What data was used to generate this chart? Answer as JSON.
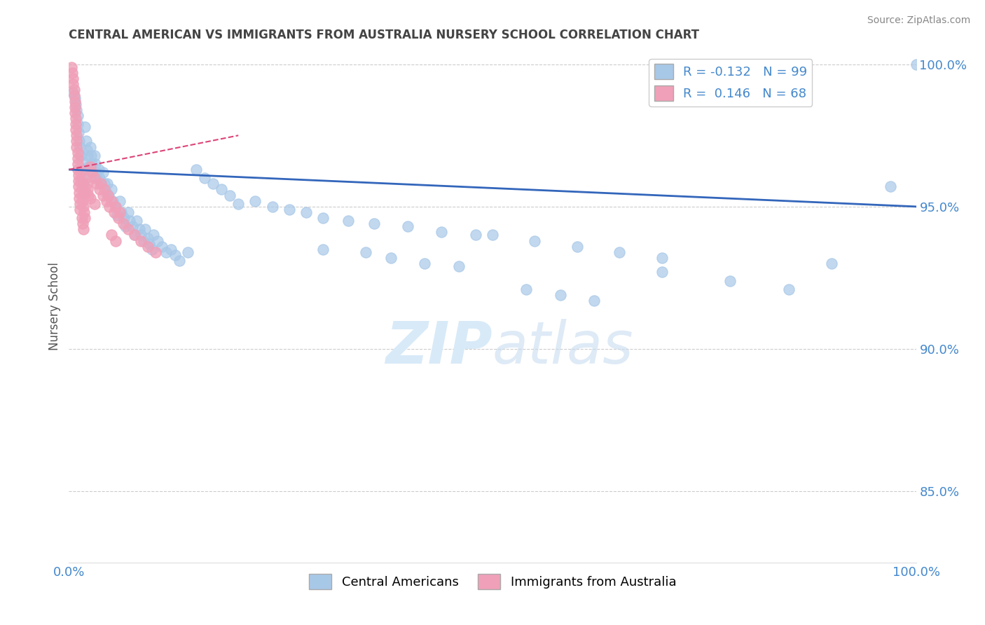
{
  "title": "CENTRAL AMERICAN VS IMMIGRANTS FROM AUSTRALIA NURSERY SCHOOL CORRELATION CHART",
  "source": "Source: ZipAtlas.com",
  "ylabel": "Nursery School",
  "xlim": [
    0,
    1.0
  ],
  "ylim": [
    0.825,
    1.005
  ],
  "ytick_vals": [
    0.85,
    0.9,
    0.95,
    1.0
  ],
  "ytick_labels": [
    "85.0%",
    "90.0%",
    "95.0%",
    "100.0%"
  ],
  "blue_color": "#a8c8e8",
  "pink_color": "#f0a0b8",
  "trend_blue_color": "#3366bb",
  "trend_pink_color": "#dd4477",
  "axis_color": "#4488cc",
  "title_color": "#444444",
  "source_color": "#888888",
  "grid_color": "#cccccc",
  "watermark_color": "#d8eaf8",
  "legend_label1": "R = -0.132   N = 99",
  "legend_label2": "R =  0.146   N = 68",
  "bottom_legend1": "Central Americans",
  "bottom_legend2": "Immigrants from Australia",
  "blue_scatter_x": [
    0.005,
    0.007,
    0.008,
    0.009,
    0.01,
    0.01,
    0.011,
    0.012,
    0.013,
    0.014,
    0.015,
    0.015,
    0.016,
    0.017,
    0.018,
    0.019,
    0.02,
    0.021,
    0.022,
    0.023,
    0.025,
    0.026,
    0.027,
    0.028,
    0.03,
    0.031,
    0.032,
    0.033,
    0.035,
    0.036,
    0.038,
    0.04,
    0.042,
    0.044,
    0.045,
    0.047,
    0.05,
    0.052,
    0.055,
    0.057,
    0.06,
    0.062,
    0.065,
    0.067,
    0.07,
    0.072,
    0.075,
    0.077,
    0.08,
    0.083,
    0.085,
    0.088,
    0.09,
    0.093,
    0.095,
    0.098,
    0.1,
    0.105,
    0.11,
    0.115,
    0.12,
    0.125,
    0.13,
    0.14,
    0.15,
    0.16,
    0.17,
    0.18,
    0.19,
    0.2,
    0.22,
    0.24,
    0.26,
    0.28,
    0.3,
    0.33,
    0.36,
    0.4,
    0.44,
    0.48,
    0.3,
    0.35,
    0.38,
    0.42,
    0.46,
    0.5,
    0.55,
    0.6,
    0.65,
    0.7,
    0.54,
    0.58,
    0.62,
    0.7,
    0.78,
    0.85,
    0.9,
    0.97,
    1.0
  ],
  "blue_scatter_y": [
    0.99,
    0.988,
    0.986,
    0.984,
    0.982,
    0.979,
    0.976,
    0.973,
    0.971,
    0.968,
    0.966,
    0.963,
    0.96,
    0.958,
    0.955,
    0.978,
    0.973,
    0.97,
    0.968,
    0.964,
    0.971,
    0.968,
    0.965,
    0.962,
    0.968,
    0.965,
    0.962,
    0.96,
    0.963,
    0.96,
    0.958,
    0.962,
    0.958,
    0.955,
    0.958,
    0.954,
    0.956,
    0.952,
    0.95,
    0.947,
    0.952,
    0.948,
    0.946,
    0.943,
    0.948,
    0.945,
    0.943,
    0.94,
    0.945,
    0.942,
    0.94,
    0.938,
    0.942,
    0.939,
    0.937,
    0.935,
    0.94,
    0.938,
    0.936,
    0.934,
    0.935,
    0.933,
    0.931,
    0.934,
    0.963,
    0.96,
    0.958,
    0.956,
    0.954,
    0.951,
    0.952,
    0.95,
    0.949,
    0.948,
    0.946,
    0.945,
    0.944,
    0.943,
    0.941,
    0.94,
    0.935,
    0.934,
    0.932,
    0.93,
    0.929,
    0.94,
    0.938,
    0.936,
    0.934,
    0.932,
    0.921,
    0.919,
    0.917,
    0.927,
    0.924,
    0.921,
    0.93,
    0.957,
    1.0
  ],
  "pink_scatter_x": [
    0.003,
    0.004,
    0.005,
    0.005,
    0.006,
    0.006,
    0.007,
    0.007,
    0.007,
    0.008,
    0.008,
    0.008,
    0.009,
    0.009,
    0.009,
    0.01,
    0.01,
    0.01,
    0.01,
    0.011,
    0.011,
    0.011,
    0.012,
    0.012,
    0.013,
    0.013,
    0.014,
    0.014,
    0.015,
    0.015,
    0.016,
    0.017,
    0.018,
    0.019,
    0.02,
    0.021,
    0.022,
    0.023,
    0.025,
    0.027,
    0.03,
    0.033,
    0.036,
    0.04,
    0.044,
    0.048,
    0.053,
    0.058,
    0.064,
    0.07,
    0.077,
    0.085,
    0.093,
    0.102,
    0.038,
    0.042,
    0.046,
    0.05,
    0.055,
    0.06,
    0.015,
    0.016,
    0.017,
    0.05,
    0.055,
    0.02,
    0.025,
    0.03
  ],
  "pink_scatter_y": [
    0.999,
    0.997,
    0.995,
    0.993,
    0.991,
    0.989,
    0.987,
    0.985,
    0.983,
    0.981,
    0.979,
    0.977,
    0.975,
    0.973,
    0.971,
    0.969,
    0.967,
    0.965,
    0.963,
    0.961,
    0.959,
    0.957,
    0.955,
    0.953,
    0.951,
    0.949,
    0.962,
    0.959,
    0.957,
    0.954,
    0.952,
    0.95,
    0.948,
    0.946,
    0.96,
    0.958,
    0.956,
    0.954,
    0.964,
    0.962,
    0.96,
    0.958,
    0.956,
    0.954,
    0.952,
    0.95,
    0.948,
    0.946,
    0.944,
    0.942,
    0.94,
    0.938,
    0.936,
    0.934,
    0.958,
    0.956,
    0.954,
    0.952,
    0.95,
    0.948,
    0.946,
    0.944,
    0.942,
    0.94,
    0.938,
    0.955,
    0.953,
    0.951
  ],
  "blue_trend_x0": 0.0,
  "blue_trend_x1": 1.0,
  "blue_trend_y0": 0.963,
  "blue_trend_y1": 0.95,
  "pink_trend_x0": 0.0,
  "pink_trend_x1": 0.2,
  "pink_trend_y0": 0.963,
  "pink_trend_y1": 0.975
}
